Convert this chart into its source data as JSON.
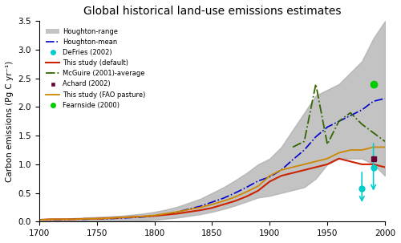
{
  "title": "Global historical land-use emissions estimates",
  "ylabel": "Carbon emissions (Pg C yr⁻¹)",
  "xlim": [
    1700,
    2000
  ],
  "ylim": [
    0,
    3.5
  ],
  "yticks": [
    0.0,
    0.5,
    1.0,
    1.5,
    2.0,
    2.5,
    3.0,
    3.5
  ],
  "xticks": [
    1700,
    1750,
    1800,
    1850,
    1900,
    1950,
    2000
  ],
  "houghton_range_years": [
    1700,
    1710,
    1720,
    1730,
    1740,
    1750,
    1760,
    1770,
    1780,
    1790,
    1800,
    1810,
    1820,
    1830,
    1840,
    1850,
    1860,
    1870,
    1880,
    1890,
    1900,
    1910,
    1920,
    1930,
    1940,
    1950,
    1960,
    1970,
    1980,
    1990,
    2000
  ],
  "houghton_range_low": [
    0.0,
    0.0,
    0.0,
    0.0,
    0.01,
    0.01,
    0.01,
    0.01,
    0.02,
    0.02,
    0.03,
    0.05,
    0.07,
    0.1,
    0.13,
    0.17,
    0.22,
    0.28,
    0.35,
    0.42,
    0.45,
    0.5,
    0.55,
    0.6,
    0.75,
    1.0,
    1.1,
    1.1,
    1.1,
    1.0,
    0.8
  ],
  "houghton_range_high": [
    0.05,
    0.05,
    0.05,
    0.06,
    0.07,
    0.08,
    0.09,
    0.1,
    0.12,
    0.14,
    0.17,
    0.21,
    0.26,
    0.33,
    0.4,
    0.5,
    0.6,
    0.72,
    0.85,
    1.0,
    1.1,
    1.3,
    1.6,
    1.9,
    2.2,
    2.3,
    2.4,
    2.6,
    2.8,
    3.2,
    3.5
  ],
  "houghton_mean_years": [
    1700,
    1710,
    1720,
    1730,
    1740,
    1750,
    1760,
    1770,
    1780,
    1790,
    1800,
    1810,
    1820,
    1830,
    1840,
    1850,
    1860,
    1870,
    1880,
    1890,
    1900,
    1910,
    1920,
    1930,
    1940,
    1950,
    1960,
    1970,
    1980,
    1990,
    2000
  ],
  "houghton_mean": [
    0.03,
    0.03,
    0.03,
    0.04,
    0.04,
    0.05,
    0.05,
    0.06,
    0.07,
    0.08,
    0.1,
    0.13,
    0.17,
    0.22,
    0.27,
    0.34,
    0.41,
    0.5,
    0.6,
    0.71,
    0.78,
    0.9,
    1.08,
    1.25,
    1.48,
    1.65,
    1.75,
    1.85,
    1.95,
    2.1,
    2.15
  ],
  "this_study_default_years": [
    1700,
    1710,
    1720,
    1730,
    1740,
    1750,
    1760,
    1770,
    1780,
    1790,
    1800,
    1810,
    1820,
    1830,
    1840,
    1850,
    1860,
    1870,
    1880,
    1890,
    1900,
    1910,
    1920,
    1930,
    1940,
    1950,
    1960,
    1970,
    1980,
    1990,
    2000
  ],
  "this_study_default": [
    0.03,
    0.04,
    0.04,
    0.04,
    0.05,
    0.05,
    0.06,
    0.07,
    0.08,
    0.09,
    0.1,
    0.12,
    0.14,
    0.17,
    0.2,
    0.24,
    0.3,
    0.36,
    0.44,
    0.54,
    0.7,
    0.8,
    0.85,
    0.9,
    0.95,
    1.0,
    1.1,
    1.05,
    1.0,
    1.0,
    0.95
  ],
  "this_study_fao_years": [
    1700,
    1710,
    1720,
    1730,
    1740,
    1750,
    1760,
    1770,
    1780,
    1790,
    1800,
    1810,
    1820,
    1830,
    1840,
    1850,
    1860,
    1870,
    1880,
    1890,
    1900,
    1910,
    1920,
    1930,
    1940,
    1950,
    1960,
    1970,
    1980,
    1990,
    2000
  ],
  "this_study_fao": [
    0.03,
    0.04,
    0.04,
    0.04,
    0.05,
    0.05,
    0.06,
    0.07,
    0.08,
    0.09,
    0.11,
    0.14,
    0.17,
    0.21,
    0.25,
    0.3,
    0.36,
    0.43,
    0.52,
    0.62,
    0.8,
    0.9,
    0.95,
    1.0,
    1.05,
    1.1,
    1.2,
    1.25,
    1.25,
    1.3,
    1.3
  ],
  "mcguire_years": [
    1920,
    1930,
    1940,
    1950,
    1960,
    1970,
    1980,
    1990,
    2000
  ],
  "mcguire": [
    1.3,
    1.4,
    2.4,
    1.35,
    1.75,
    1.9,
    1.7,
    1.55,
    1.4
  ],
  "defries_years": [
    1980,
    1990
  ],
  "defries": [
    0.58,
    0.94
  ],
  "achard_years": [
    1990
  ],
  "achard": [
    1.1
  ],
  "fearnside_years": [
    1990
  ],
  "fearnside": [
    2.4
  ],
  "defries_arrow_years": [
    1980,
    1990
  ],
  "defries_arrow_low": [
    0.3,
    0.5
  ],
  "defries_arrow_high": [
    0.9,
    1.4
  ],
  "colors": {
    "houghton_range": "#aaaaaa",
    "houghton_mean": "#0000cc",
    "this_study_default": "#cc2200",
    "this_study_fao": "#cc8800",
    "mcguire": "#336600",
    "defries": "#00cccc",
    "achard": "#660033",
    "fearnside": "#00cc00"
  }
}
